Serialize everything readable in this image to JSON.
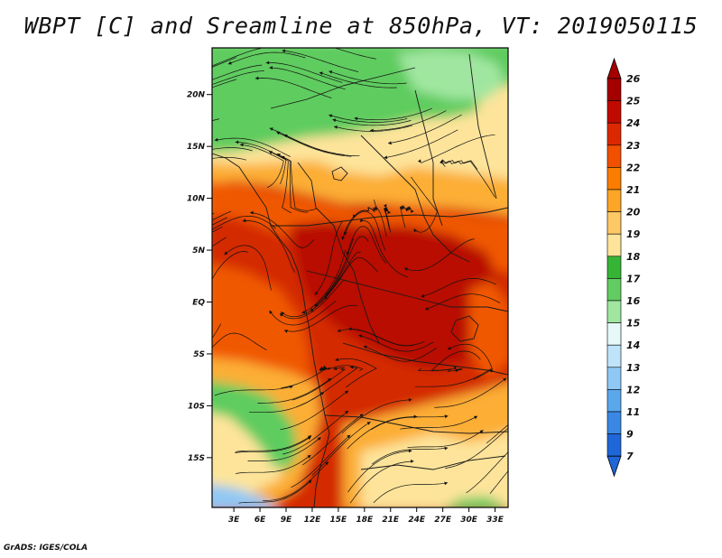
{
  "title": "WBPT [C] and Sreamline at 850hPa, VT: 2019050115",
  "credit": "GrADS: IGES/COLA",
  "map": {
    "lat_ticks": [
      "20N",
      "15N",
      "10N",
      "5N",
      "EQ",
      "5S",
      "10S",
      "15S"
    ],
    "lon_ticks": [
      "3E",
      "6E",
      "9E",
      "12E",
      "15E",
      "18E",
      "21E",
      "24E",
      "27E",
      "30E",
      "33E"
    ],
    "extent": {
      "lon_min": 0.5,
      "lon_max": 34.5,
      "lat_min": -19.8,
      "lat_max": 24.5
    }
  },
  "colorbar": {
    "labels": [
      "26",
      "25",
      "24",
      "23",
      "22",
      "21",
      "20",
      "19",
      "18",
      "17",
      "16",
      "15",
      "14",
      "13",
      "12",
      "11",
      "9",
      "7"
    ],
    "colors": [
      "#a50000",
      "#c00a00",
      "#dc2800",
      "#f05000",
      "#fa7d00",
      "#fca526",
      "#fdc865",
      "#fde49a",
      "#36b436",
      "#62cc62",
      "#a0e6a0",
      "#e6f8f8",
      "#bfe4fa",
      "#8fc8f4",
      "#5aa8ec",
      "#3a88e4",
      "#1f66d8"
    ],
    "top_color": "#a50000",
    "bottom_color": "#1f66d8"
  },
  "colors": {
    "very_hot": "#b80d00",
    "hot": "#d42a00",
    "warm": "#f05800",
    "mild": "#fcae35",
    "cool": "#fde49a",
    "green": "#5fcc5f",
    "light_green": "#a0e6a0",
    "blue": "#8fc8f4"
  }
}
